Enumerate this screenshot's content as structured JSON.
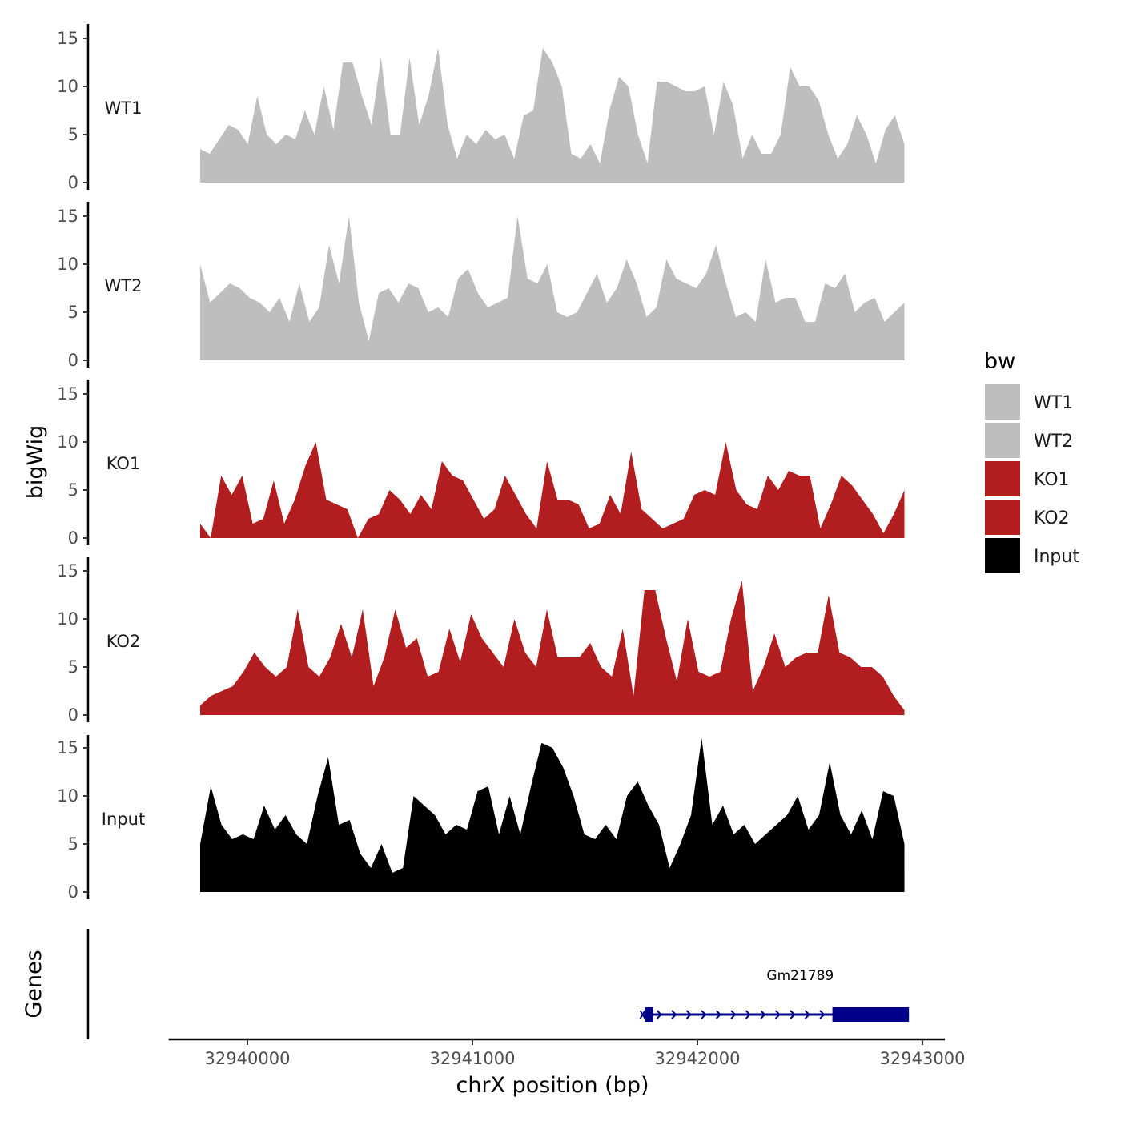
{
  "chart_data": {
    "type": "area",
    "title": "",
    "ylabel": "bigWig",
    "xlabel": "chrX position (bp)",
    "xlim": [
      32939650,
      32943100
    ],
    "ylim": [
      0,
      16
    ],
    "x_ticks": [
      {
        "value": 32940000,
        "label": "32940000"
      },
      {
        "value": 32941000,
        "label": "32941000"
      },
      {
        "value": 32942000,
        "label": "32942000"
      },
      {
        "value": 32943000,
        "label": "32943000"
      }
    ],
    "y_ticks": [
      {
        "value": 0,
        "label": "0"
      },
      {
        "value": 5,
        "label": "5"
      },
      {
        "value": 10,
        "label": "10"
      },
      {
        "value": 15,
        "label": "15"
      }
    ],
    "legend": {
      "title": "bw",
      "position": "right",
      "entries": [
        {
          "label": "WT1",
          "color": "#bebebe"
        },
        {
          "label": "WT2",
          "color": "#bebebe"
        },
        {
          "label": "KO1",
          "color": "#b21d1f"
        },
        {
          "label": "KO2",
          "color": "#b21d1f"
        },
        {
          "label": "Input",
          "color": "#000000"
        }
      ]
    },
    "x_range": [
      32939790,
      32942920
    ],
    "series": [
      {
        "name": "WT1",
        "color": "#bebebe",
        "values": [
          3.5,
          3.0,
          4.5,
          6.0,
          5.5,
          4.0,
          9.0,
          5.0,
          4.0,
          5.0,
          4.5,
          7.5,
          5.0,
          10.0,
          5.5,
          12.5,
          12.5,
          9.0,
          6.0,
          13.0,
          5.0,
          5.0,
          13.0,
          6.0,
          9.0,
          14.0,
          6.0,
          2.5,
          5.0,
          4.0,
          5.5,
          4.5,
          5.0,
          2.5,
          7.0,
          7.5,
          14.0,
          12.5,
          10.0,
          3.0,
          2.5,
          4.0,
          2.0,
          7.5,
          11.0,
          10.0,
          5.0,
          2.0,
          10.5,
          10.5,
          10.0,
          9.5,
          9.5,
          10.0,
          5.0,
          10.5,
          8.0,
          2.5,
          5.0,
          3.0,
          3.0,
          5.0,
          12.0,
          10.0,
          10.0,
          8.5,
          5.0,
          2.5,
          4.0,
          7.0,
          5.0,
          2.0,
          5.5,
          7.0,
          4.0
        ]
      },
      {
        "name": "WT2",
        "color": "#bebebe",
        "values": [
          10.0,
          6.0,
          7.0,
          8.0,
          7.5,
          6.5,
          6.0,
          5.0,
          6.5,
          4.0,
          8.0,
          4.0,
          5.5,
          12.0,
          8.0,
          15.0,
          6.0,
          2.0,
          7.0,
          7.5,
          6.0,
          8.0,
          7.5,
          5.0,
          5.5,
          4.5,
          8.5,
          9.5,
          7.0,
          5.5,
          6.0,
          6.5,
          15.0,
          8.5,
          8.0,
          10.0,
          5.0,
          4.5,
          5.0,
          7.0,
          9.0,
          6.0,
          7.5,
          10.5,
          8.0,
          4.5,
          5.5,
          10.5,
          8.5,
          8.0,
          7.5,
          9.0,
          12.0,
          8.0,
          4.5,
          5.0,
          4.0,
          10.5,
          6.0,
          6.5,
          6.5,
          4.0,
          4.0,
          8.0,
          7.5,
          9.0,
          5.0,
          6.0,
          6.5,
          4.0,
          5.0,
          6.0
        ]
      },
      {
        "name": "KO1",
        "color": "#b21d1f",
        "values": [
          1.5,
          0.0,
          6.5,
          4.5,
          6.5,
          1.5,
          2.0,
          6.0,
          1.5,
          4.0,
          7.5,
          10.0,
          4.0,
          3.5,
          3.0,
          0.0,
          2.0,
          2.5,
          5.0,
          4.0,
          2.5,
          4.5,
          3.0,
          8.0,
          6.5,
          6.0,
          4.0,
          2.0,
          3.0,
          6.5,
          4.5,
          2.5,
          1.0,
          8.0,
          4.0,
          4.0,
          3.5,
          1.0,
          1.5,
          4.5,
          2.5,
          9.0,
          3.0,
          2.0,
          1.0,
          1.5,
          2.0,
          4.5,
          5.0,
          4.5,
          10.0,
          5.0,
          3.5,
          3.0,
          6.5,
          5.0,
          7.0,
          6.5,
          6.5,
          1.0,
          3.5,
          6.5,
          5.5,
          4.0,
          2.5,
          0.5,
          2.5,
          5.0
        ]
      },
      {
        "name": "KO2",
        "color": "#b21d1f",
        "values": [
          1.0,
          2.0,
          2.5,
          3.0,
          4.5,
          6.5,
          5.0,
          4.0,
          5.0,
          11.0,
          5.0,
          4.0,
          6.0,
          9.5,
          6.0,
          11.0,
          3.0,
          6.0,
          11.0,
          7.0,
          8.0,
          4.0,
          4.5,
          9.0,
          5.5,
          10.5,
          8.0,
          6.5,
          5.0,
          10.0,
          6.5,
          5.0,
          11.0,
          6.0,
          6.0,
          6.0,
          7.5,
          5.0,
          4.0,
          9.0,
          2.0,
          13.0,
          13.0,
          8.0,
          3.5,
          10.0,
          4.5,
          4.0,
          4.5,
          10.0,
          14.0,
          2.5,
          5.0,
          8.5,
          5.0,
          6.0,
          6.5,
          6.5,
          12.5,
          6.5,
          6.0,
          5.0,
          5.0,
          4.0,
          2.0,
          0.5
        ]
      },
      {
        "name": "Input",
        "color": "#000000",
        "values": [
          5.0,
          11.0,
          7.0,
          5.5,
          6.0,
          5.5,
          9.0,
          6.5,
          8.0,
          6.0,
          5.0,
          10.0,
          14.0,
          7.0,
          7.5,
          4.0,
          2.5,
          5.0,
          2.0,
          2.5,
          10.0,
          9.0,
          8.0,
          6.0,
          7.0,
          6.5,
          10.5,
          11.0,
          6.0,
          10.0,
          6.0,
          11.0,
          15.5,
          15.0,
          13.0,
          10.0,
          6.0,
          5.5,
          7.0,
          5.5,
          10.0,
          11.5,
          9.0,
          7.0,
          2.5,
          5.0,
          8.0,
          16.0,
          7.0,
          9.0,
          6.0,
          7.0,
          5.0,
          6.0,
          7.0,
          8.0,
          10.0,
          6.5,
          8.0,
          13.5,
          8.0,
          6.0,
          8.5,
          5.5,
          10.5,
          10.0,
          5.0
        ]
      }
    ],
    "gene_track": {
      "title": "Genes",
      "gene": {
        "name": "Gm21789",
        "start": 32941760,
        "end": 32942940,
        "thick_start": 32942600,
        "strand": "+",
        "color": "#00008b"
      }
    }
  }
}
